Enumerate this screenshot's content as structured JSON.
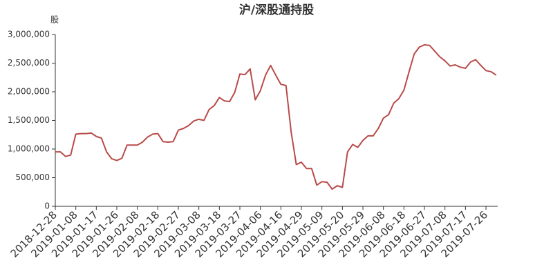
{
  "chart_data": {
    "type": "line",
    "title": "沪/深股通持股",
    "y_axis_label": "股",
    "categories": [
      "2018-12-28",
      null,
      null,
      null,
      "2019-01-08",
      null,
      null,
      null,
      "2019-01-17",
      null,
      null,
      null,
      "2019-01-26",
      null,
      null,
      null,
      "2019-02-08",
      null,
      null,
      null,
      "2019-02-18",
      null,
      null,
      null,
      "2019-02-27",
      null,
      null,
      null,
      "2019-03-08",
      null,
      null,
      null,
      "2019-03-18",
      null,
      null,
      null,
      "2019-03-27",
      null,
      null,
      null,
      "2019-04-06",
      null,
      null,
      null,
      "2019-04-16",
      null,
      null,
      null,
      "2019-04-29",
      null,
      null,
      null,
      "2019-05-09",
      null,
      null,
      null,
      "2019-05-20",
      null,
      null,
      null,
      "2019-05-29",
      null,
      null,
      null,
      "2019-06-08",
      null,
      null,
      null,
      "2019-06-18",
      null,
      null,
      null,
      "2019-06-27",
      null,
      null,
      null,
      "2019-07-08",
      null,
      null,
      null,
      "2019-07-17",
      null,
      null,
      null,
      "2019-07-26",
      null,
      null
    ],
    "series": [
      {
        "color": "#b94a48",
        "values": [
          950000,
          950000,
          870000,
          895000,
          1260000,
          1270000,
          1270000,
          1280000,
          1220000,
          1190000,
          950000,
          830000,
          800000,
          840000,
          1070000,
          1070000,
          1070000,
          1120000,
          1210000,
          1260000,
          1270000,
          1130000,
          1120000,
          1130000,
          1330000,
          1360000,
          1410000,
          1490000,
          1520000,
          1500000,
          1690000,
          1760000,
          1900000,
          1840000,
          1830000,
          1990000,
          2310000,
          2300000,
          2400000,
          1860000,
          2020000,
          2290000,
          2460000,
          2290000,
          2130000,
          2110000,
          1300000,
          730000,
          770000,
          660000,
          660000,
          370000,
          430000,
          420000,
          300000,
          360000,
          330000,
          950000,
          1080000,
          1030000,
          1150000,
          1230000,
          1230000,
          1360000,
          1540000,
          1600000,
          1800000,
          1880000,
          2030000,
          2350000,
          2660000,
          2780000,
          2820000,
          2810000,
          2710000,
          2610000,
          2540000,
          2450000,
          2470000,
          2430000,
          2410000,
          2520000,
          2560000,
          2460000,
          2370000,
          2350000,
          2290000
        ]
      }
    ],
    "ylim": [
      0,
      3000000
    ],
    "yticks": [
      0,
      {
        "value": 500000,
        "label": "500,000"
      },
      {
        "value": 1000000,
        "label": "1,000,000"
      },
      {
        "value": 1500000,
        "label": "1,500,000"
      },
      {
        "value": 2000000,
        "label": "2,000,000"
      },
      {
        "value": 2500000,
        "label": "2,500,000"
      },
      {
        "value": 3000000,
        "label": "3,000,000"
      }
    ],
    "grid": false
  }
}
